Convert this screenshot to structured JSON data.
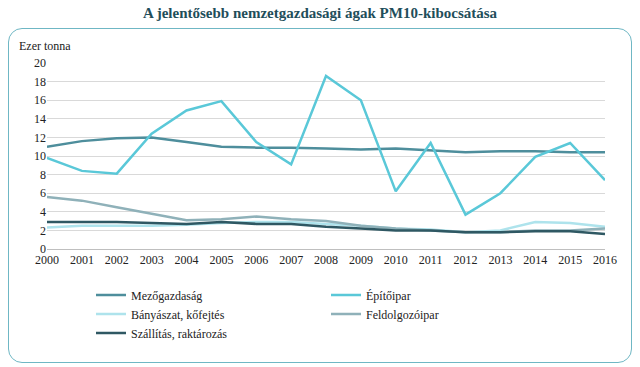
{
  "chart_data": {
    "type": "line",
    "title": "A jelentősebb nemzetgazdasági ágak PM10-kibocsátása",
    "y_label": "Ezer tonna",
    "x": [
      2000,
      2001,
      2002,
      2003,
      2004,
      2005,
      2006,
      2007,
      2008,
      2009,
      2010,
      2011,
      2012,
      2013,
      2014,
      2015,
      2016
    ],
    "xlim": [
      2000,
      2016
    ],
    "xticks": [
      2000,
      2001,
      2002,
      2003,
      2004,
      2005,
      2006,
      2007,
      2008,
      2009,
      2010,
      2011,
      2012,
      2013,
      2014,
      2015,
      2016
    ],
    "ylim": [
      0,
      20
    ],
    "yticks": [
      0,
      2,
      4,
      6,
      8,
      10,
      12,
      14,
      16,
      18,
      20
    ],
    "grid": true,
    "legend": "bottom",
    "series": [
      {
        "name": "Mezőgazdaság",
        "color": "#4e8e9c",
        "values": [
          11.0,
          11.6,
          11.9,
          12.0,
          11.5,
          11.0,
          10.9,
          10.9,
          10.8,
          10.7,
          10.8,
          10.6,
          10.4,
          10.5,
          10.5,
          10.4,
          10.4
        ]
      },
      {
        "name": "Építőipar",
        "color": "#5ac8d8",
        "values": [
          9.8,
          8.4,
          8.1,
          12.4,
          14.9,
          15.9,
          11.5,
          9.1,
          18.6,
          16.0,
          6.2,
          11.4,
          3.7,
          6.0,
          9.9,
          11.4,
          7.4
        ]
      },
      {
        "name": "Bányászat, kőfejtés",
        "color": "#aee3ec",
        "values": [
          2.3,
          2.5,
          2.5,
          2.5,
          2.6,
          2.8,
          2.9,
          2.9,
          2.7,
          2.5,
          2.2,
          2.1,
          1.8,
          2.0,
          2.9,
          2.8,
          2.4
        ]
      },
      {
        "name": "Feldolgozóipar",
        "color": "#8fb1b9",
        "values": [
          5.6,
          5.2,
          4.5,
          3.8,
          3.1,
          3.2,
          3.5,
          3.2,
          3.0,
          2.5,
          2.2,
          2.0,
          1.8,
          1.8,
          2.0,
          2.0,
          2.2
        ]
      },
      {
        "name": "Szállítás, raktározás",
        "color": "#2f5863",
        "values": [
          2.9,
          2.9,
          2.9,
          2.8,
          2.7,
          2.9,
          2.7,
          2.7,
          2.4,
          2.2,
          2.0,
          2.0,
          1.8,
          1.8,
          1.9,
          1.9,
          1.6
        ]
      }
    ]
  }
}
